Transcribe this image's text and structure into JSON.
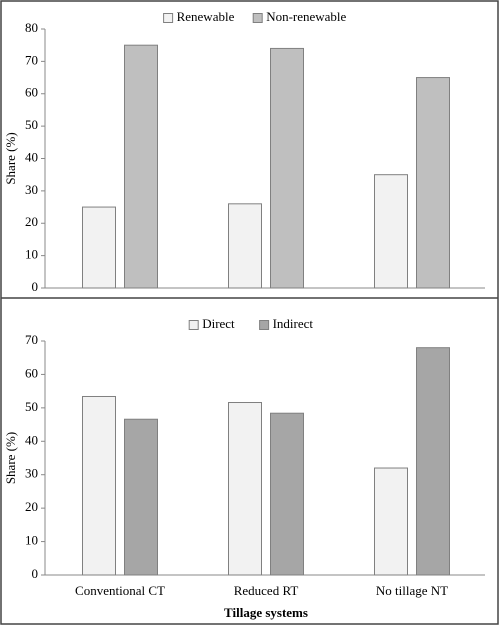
{
  "chart_data": [
    {
      "type": "bar",
      "ylabel": "Share (%)",
      "categories": [
        null,
        null,
        null
      ],
      "series": [
        {
          "name": "Renewable",
          "color": "#f2f2f2",
          "values": [
            25,
            26,
            35
          ]
        },
        {
          "name": "Non-renewable",
          "color": "#bfbfbf",
          "values": [
            75,
            74,
            65
          ]
        }
      ],
      "ylim": [
        0,
        80
      ],
      "yticks": [
        0,
        10,
        20,
        30,
        40,
        50,
        60,
        70,
        80
      ],
      "legend": "top"
    },
    {
      "type": "bar",
      "ylabel": "Share (%)",
      "xlabel": "Tillage systems",
      "categories": [
        "Conventional CT",
        "Reduced RT",
        "No tillage NT"
      ],
      "series": [
        {
          "name": "Direct",
          "color": "#f2f2f2",
          "values": [
            53.4,
            51.6,
            32
          ]
        },
        {
          "name": "Indirect",
          "color": "#a6a6a6",
          "values": [
            46.6,
            48.4,
            68
          ]
        }
      ],
      "ylim": [
        0,
        70
      ],
      "yticks": [
        0,
        10,
        20,
        30,
        40,
        50,
        60,
        70
      ],
      "legend": "top"
    }
  ]
}
